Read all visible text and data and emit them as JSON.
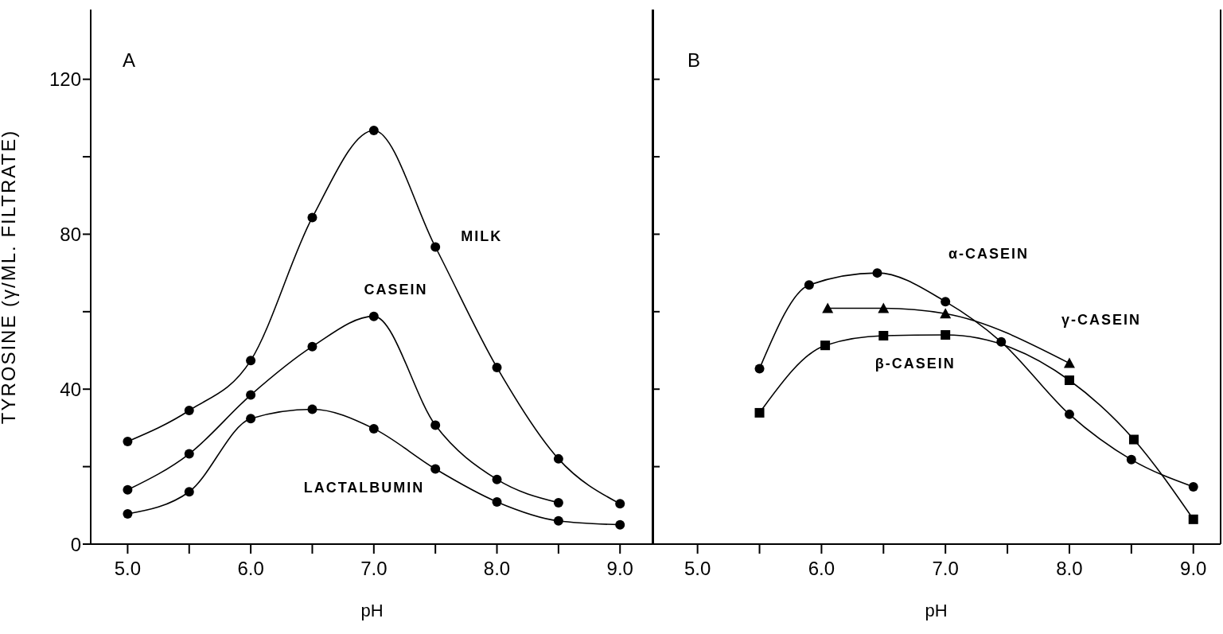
{
  "chart_data": [
    {
      "type": "line",
      "title": "A",
      "xlabel": "pH",
      "ylabel": "TYROSINE (γ/ML. FILTRATE)",
      "xlim": [
        4.7,
        9.27
      ],
      "xticks": [
        {
          "value": 5,
          "label": "5.0"
        },
        {
          "value": 5.5,
          "label": null
        },
        {
          "value": 6,
          "label": "6.0"
        },
        {
          "value": 6.5,
          "label": null
        },
        {
          "value": 7,
          "label": "7.0"
        },
        {
          "value": 7.5,
          "label": null
        },
        {
          "value": 8,
          "label": "8.0"
        },
        {
          "value": 8.5,
          "label": null
        },
        {
          "value": 9,
          "label": "9.0"
        }
      ],
      "ylim": [
        0,
        138
      ],
      "yticks": [
        0,
        {
          "value": 20,
          "label": null
        },
        40,
        {
          "value": 60,
          "label": null
        },
        80,
        {
          "value": 100,
          "label": null
        },
        120
      ],
      "marker": "circle",
      "line_style": "solid",
      "series": [
        {
          "name": "MILK",
          "color": "#000000",
          "x": [
            5,
            5.5,
            6,
            6.5,
            7,
            7.5,
            8,
            8.5,
            9
          ],
          "values": [
            26.5,
            34.5,
            47.4,
            84.3,
            106.8,
            76.7,
            45.6,
            22,
            10.4
          ]
        },
        {
          "name": "CASEIN",
          "color": "#000000",
          "x": [
            5,
            5.5,
            6,
            6.5,
            7,
            7.5,
            8,
            8.5
          ],
          "values": [
            14,
            23.3,
            38.5,
            51,
            58.8,
            30.7,
            16.7,
            10.7
          ]
        },
        {
          "name": "LACTALBUMIN",
          "color": "#000000",
          "x": [
            5,
            5.5,
            6,
            6.5,
            7,
            7.5,
            8,
            8.5,
            9
          ],
          "values": [
            7.8,
            13.5,
            32.4,
            34.8,
            29.8,
            19.4,
            10.9,
            6,
            5
          ]
        }
      ]
    },
    {
      "type": "line",
      "title": "B",
      "xlabel": "pH",
      "xlim": [
        4.63,
        9.22
      ],
      "xticks": [
        {
          "value": 5,
          "label": "5.0"
        },
        {
          "value": 5.5,
          "label": null
        },
        {
          "value": 6,
          "label": "6.0"
        },
        {
          "value": 6.5,
          "label": null
        },
        {
          "value": 7,
          "label": "7.0"
        },
        {
          "value": 7.5,
          "label": null
        },
        {
          "value": 8,
          "label": "8.0"
        },
        {
          "value": 8.5,
          "label": null
        },
        {
          "value": 9,
          "label": "9.0"
        }
      ],
      "ylim": [
        0,
        138
      ],
      "yticks": [
        0,
        20,
        40,
        60,
        80,
        100,
        120
      ],
      "tick_labels": "x",
      "line_style": "solid",
      "series": [
        {
          "name": "α-CASEIN",
          "color": "#000000",
          "marker": "circle",
          "x": [
            5.5,
            5.9,
            6.45,
            7,
            7.45,
            8,
            8.5,
            9
          ],
          "values": [
            45.3,
            66.9,
            70,
            62.6,
            52.2,
            33.5,
            21.8,
            14.8
          ]
        },
        {
          "name": "γ-CASEIN",
          "color": "#000000",
          "marker": "triangle",
          "x": [
            6.05,
            6.5,
            7,
            8
          ],
          "values": [
            60.9,
            60.9,
            59.5,
            46.7
          ]
        },
        {
          "name": "β-CASEIN",
          "color": "#000000",
          "marker": "square",
          "x": [
            5.5,
            6.03,
            6.5,
            7,
            8,
            8.52,
            9
          ],
          "values": [
            33.9,
            51.3,
            53.8,
            54,
            42.3,
            27,
            6.4
          ]
        }
      ]
    }
  ]
}
